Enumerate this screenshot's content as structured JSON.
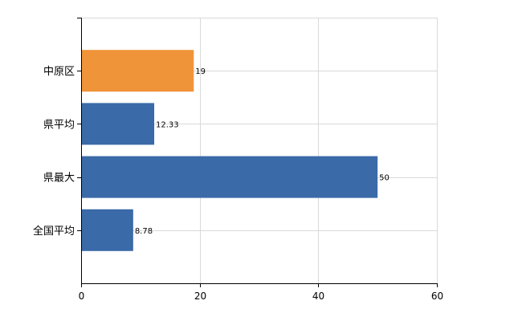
{
  "chart_data": {
    "type": "bar",
    "orientation": "horizontal",
    "categories": [
      "中原区",
      "県平均",
      "県最大",
      "全国平均"
    ],
    "values": [
      19,
      12.33,
      50,
      8.78
    ],
    "value_labels": [
      "19",
      "12.33",
      "50",
      "8.78"
    ],
    "highlight_index": 0,
    "xlim": [
      0,
      60
    ],
    "xticks": [
      0,
      20,
      40,
      60
    ],
    "grid": true,
    "colors": {
      "normal": "#3a6aa8",
      "highlight": "#f0943a"
    }
  }
}
